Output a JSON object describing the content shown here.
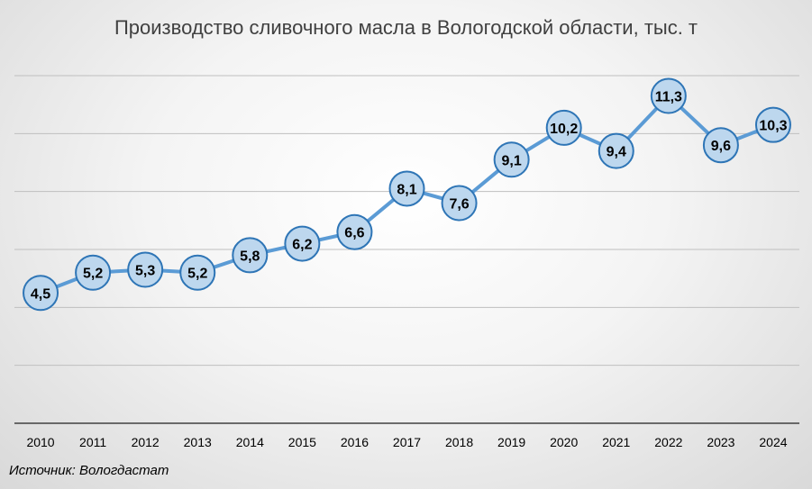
{
  "chart_data": {
    "type": "line",
    "title": "Производство сливочного масла в Вологодской области, тыс. т",
    "source": "Источник: Вологдастат",
    "categories": [
      "2010",
      "2011",
      "2012",
      "2013",
      "2014",
      "2015",
      "2016",
      "2017",
      "2018",
      "2019",
      "2020",
      "2021",
      "2022",
      "2023",
      "2024"
    ],
    "series": [
      {
        "values": [
          4.5,
          5.2,
          5.3,
          5.2,
          5.8,
          6.2,
          6.6,
          8.1,
          7.6,
          9.1,
          10.2,
          9.4,
          11.3,
          9.6,
          10.3
        ],
        "labels": [
          "4,5",
          "5,2",
          "5,3",
          "5,2",
          "5,8",
          "6,2",
          "6,6",
          "8,1",
          "7,6",
          "9,1",
          "10,2",
          "9,4",
          "11,3",
          "9,6",
          "10,3"
        ]
      }
    ],
    "ylim": [
      0,
      12
    ],
    "grid": true,
    "legend": "none",
    "colors": {
      "line": "#5b9bd5",
      "marker_fill": "#bdd7ee",
      "marker_stroke": "#2e75b6",
      "grid": "#bfbfbf",
      "axis": "#404040"
    }
  }
}
